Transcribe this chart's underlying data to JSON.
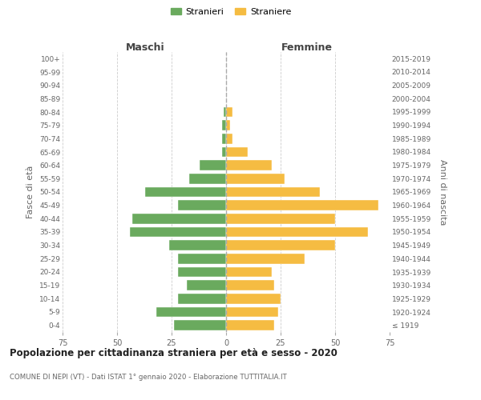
{
  "age_groups": [
    "100+",
    "95-99",
    "90-94",
    "85-89",
    "80-84",
    "75-79",
    "70-74",
    "65-69",
    "60-64",
    "55-59",
    "50-54",
    "45-49",
    "40-44",
    "35-39",
    "30-34",
    "25-29",
    "20-24",
    "15-19",
    "10-14",
    "5-9",
    "0-4"
  ],
  "birth_years": [
    "≤ 1919",
    "1920-1924",
    "1925-1929",
    "1930-1934",
    "1935-1939",
    "1940-1944",
    "1945-1949",
    "1950-1954",
    "1955-1959",
    "1960-1964",
    "1965-1969",
    "1970-1974",
    "1975-1979",
    "1980-1984",
    "1985-1989",
    "1990-1994",
    "1995-1999",
    "2000-2004",
    "2005-2009",
    "2010-2014",
    "2015-2019"
  ],
  "males": [
    0,
    0,
    0,
    0,
    1,
    2,
    2,
    2,
    12,
    17,
    37,
    22,
    43,
    44,
    26,
    22,
    22,
    18,
    22,
    32,
    24
  ],
  "females": [
    0,
    0,
    0,
    0,
    3,
    2,
    3,
    10,
    21,
    27,
    43,
    70,
    50,
    65,
    50,
    36,
    21,
    22,
    25,
    24,
    22
  ],
  "male_color": "#6aaa5e",
  "female_color": "#f5bc42",
  "male_label": "Stranieri",
  "female_label": "Straniere",
  "title": "Popolazione per cittadinanza straniera per età e sesso - 2020",
  "subtitle": "COMUNE DI NEPI (VT) - Dati ISTAT 1° gennaio 2020 - Elaborazione TUTTITALIA.IT",
  "header_left": "Maschi",
  "header_right": "Femmine",
  "ylabel_left": "Fasce di età",
  "ylabel_right": "Anni di nascita",
  "xlim": 75,
  "background_color": "#ffffff",
  "grid_color": "#cccccc",
  "text_color": "#666666",
  "header_color": "#444444"
}
